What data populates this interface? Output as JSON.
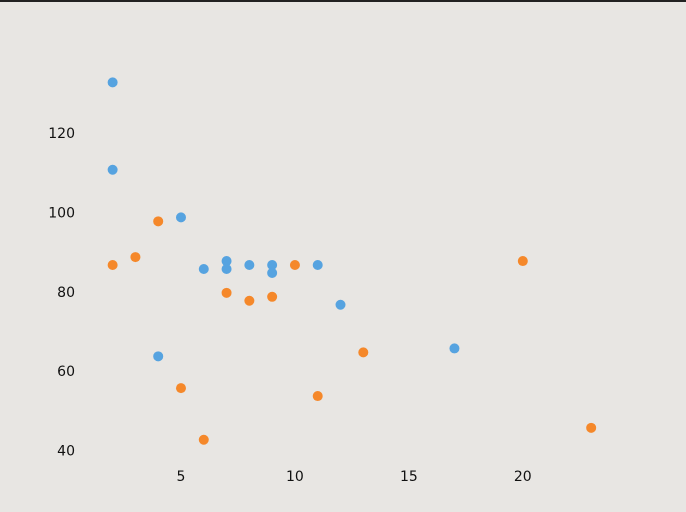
{
  "chart_data": {
    "type": "scatter",
    "series": [
      {
        "color": "#56a3e0",
        "x": [
          2,
          2,
          5,
          4,
          6,
          7,
          7,
          8,
          9,
          9,
          11,
          12,
          17
        ],
        "values": [
          133,
          111,
          99,
          64,
          86,
          88,
          86,
          87,
          87,
          85,
          87,
          77,
          66
        ]
      },
      {
        "color": "#f5882a",
        "x": [
          2,
          3,
          4,
          5,
          6,
          7,
          8,
          9,
          10,
          11,
          13,
          20,
          23
        ],
        "values": [
          87,
          89,
          98,
          56,
          43,
          80,
          78,
          79,
          87,
          54,
          65,
          88,
          46
        ]
      }
    ],
    "xlim": [
      0.95,
      24.05
    ],
    "xticks": [
      5,
      10,
      15,
      20
    ],
    "ylim": [
      38.5,
      137.5
    ],
    "yticks": [
      40,
      60,
      80,
      100,
      120
    ],
    "grid": false
  }
}
